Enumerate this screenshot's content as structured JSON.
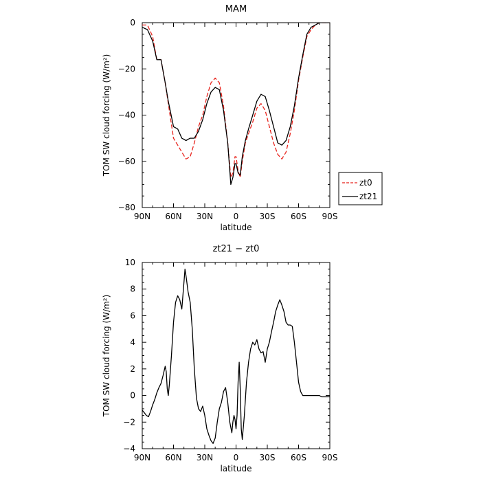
{
  "chart_data": [
    {
      "type": "line",
      "title": "MAM",
      "xlabel": "latitude",
      "ylabel": "TOM SW cloud forcing (W/m²)",
      "xlim": [
        -90,
        90
      ],
      "ylim": [
        -80,
        0
      ],
      "x_ticks": [
        -90,
        -60,
        -30,
        0,
        30,
        60,
        90
      ],
      "x_tick_labels": [
        "90N",
        "60N",
        "30N",
        "0",
        "30S",
        "60S",
        "90S"
      ],
      "y_ticks": [
        0,
        -20,
        -40,
        -60,
        -80
      ],
      "y_tick_labels": [
        "0",
        "−20",
        "−40",
        "−60",
        "−80"
      ],
      "legend": {
        "placement": "right",
        "entries": [
          "zt0",
          "zt21"
        ]
      },
      "series": [
        {
          "name": "zt0",
          "color": "#e8231c",
          "dash": "dashed",
          "x": [
            -90,
            -85,
            -80,
            -76,
            -72,
            -68,
            -65,
            -60,
            -56,
            -52,
            -48,
            -44,
            -40,
            -36,
            -32,
            -28,
            -24,
            -20,
            -16,
            -12,
            -8,
            -5,
            -3,
            -1,
            0,
            2,
            4,
            6,
            9,
            12,
            16,
            20,
            24,
            28,
            32,
            36,
            40,
            44,
            48,
            52,
            56,
            60,
            64,
            68,
            72,
            76,
            80,
            85,
            90
          ],
          "y": [
            -1,
            -1,
            -6,
            -16,
            -16,
            -26,
            -35,
            -50,
            -53,
            -56,
            -59,
            -58,
            -52,
            -45,
            -40,
            -32,
            -26,
            -24,
            -26,
            -36,
            -52,
            -67,
            -65,
            -58,
            -58,
            -64,
            -67,
            -60,
            -52,
            -48,
            -43,
            -37,
            -35,
            -38,
            -45,
            -52,
            -57,
            -59,
            -56,
            -48,
            -38,
            -25,
            -15,
            -6,
            -3,
            -1,
            0,
            0,
            0
          ]
        },
        {
          "name": "zt21",
          "color": "#000000",
          "dash": "solid",
          "x": [
            -90,
            -85,
            -80,
            -76,
            -72,
            -68,
            -65,
            -60,
            -56,
            -52,
            -48,
            -44,
            -40,
            -36,
            -32,
            -28,
            -24,
            -20,
            -16,
            -12,
            -8,
            -5,
            -3,
            -1,
            0,
            2,
            4,
            6,
            9,
            12,
            16,
            20,
            24,
            28,
            32,
            36,
            40,
            44,
            48,
            52,
            56,
            60,
            64,
            68,
            72,
            76,
            80,
            85,
            90
          ],
          "y": [
            -2,
            -3,
            -8,
            -16,
            -16,
            -26,
            -34,
            -45,
            -46,
            -50,
            -51,
            -50,
            -50,
            -47,
            -42,
            -35,
            -30,
            -28,
            -29,
            -38,
            -52,
            -70,
            -67,
            -61,
            -61,
            -65,
            -66,
            -58,
            -51,
            -46,
            -40,
            -34,
            -31,
            -32,
            -38,
            -45,
            -52,
            -53,
            -51,
            -45,
            -36,
            -24,
            -14,
            -5,
            -2,
            -1,
            0,
            0,
            0
          ]
        }
      ]
    },
    {
      "type": "line",
      "title": "zt21 − zt0",
      "xlabel": "latitude",
      "ylabel": "TOM SW cloud forcing (W/m²)",
      "xlim": [
        -90,
        90
      ],
      "ylim": [
        -4,
        10
      ],
      "x_ticks": [
        -90,
        -60,
        -30,
        0,
        30,
        60,
        90
      ],
      "x_tick_labels": [
        "90N",
        "60N",
        "30N",
        "0",
        "30S",
        "60S",
        "90S"
      ],
      "y_ticks": [
        10,
        8,
        6,
        4,
        2,
        0,
        -2,
        -4
      ],
      "y_tick_labels": [
        "10",
        "8",
        "6",
        "4",
        "2",
        "0",
        "−2",
        "−4"
      ],
      "series": [
        {
          "color": "#000000",
          "dash": "solid",
          "x": [
            -90,
            -88,
            -86,
            -84,
            -82,
            -80,
            -78,
            -76,
            -74,
            -72,
            -70,
            -68,
            -67,
            -66,
            -65,
            -64,
            -62,
            -60,
            -58,
            -56,
            -54,
            -52,
            -50,
            -49,
            -48,
            -46,
            -44,
            -42,
            -40,
            -38,
            -36,
            -34,
            -32,
            -30,
            -28,
            -26,
            -24,
            -22,
            -20,
            -18,
            -16,
            -14,
            -12,
            -10,
            -8,
            -6,
            -4,
            -3,
            -2,
            -1,
            0,
            1,
            2,
            3,
            4,
            5,
            6,
            8,
            10,
            12,
            14,
            16,
            18,
            20,
            22,
            24,
            26,
            28,
            30,
            32,
            34,
            36,
            38,
            40,
            42,
            44,
            46,
            48,
            50,
            52,
            54,
            56,
            58,
            60,
            62,
            64,
            66,
            68,
            70,
            72,
            74,
            76,
            78,
            80,
            82,
            84,
            86,
            88,
            90
          ],
          "y": [
            -1.1,
            -1.3,
            -1.5,
            -1.6,
            -1.2,
            -0.7,
            -0.3,
            0.2,
            0.6,
            0.9,
            1.5,
            2.2,
            1.8,
            0.5,
            0.0,
            0.8,
            3.0,
            5.5,
            7.0,
            7.5,
            7.2,
            6.5,
            8.5,
            9.5,
            9.0,
            7.8,
            7.0,
            5.0,
            2.0,
            -0.2,
            -1.0,
            -1.2,
            -0.8,
            -1.5,
            -2.5,
            -3.0,
            -3.4,
            -3.6,
            -3.2,
            -2.0,
            -1.0,
            -0.5,
            0.3,
            0.6,
            -0.5,
            -2.0,
            -2.8,
            -2.0,
            -1.5,
            -1.8,
            -2.5,
            -1.5,
            1.0,
            2.5,
            0.5,
            -2.5,
            -3.3,
            -1.5,
            1.0,
            2.5,
            3.5,
            4.0,
            3.8,
            4.2,
            3.5,
            3.2,
            3.3,
            2.5,
            3.5,
            4.0,
            4.8,
            5.5,
            6.3,
            6.8,
            7.2,
            6.8,
            6.3,
            5.5,
            5.3,
            5.3,
            5.2,
            4.0,
            2.5,
            1.0,
            0.3,
            0.0,
            0.0,
            0.0,
            0.0,
            0.0,
            0.0,
            0.0,
            0.0,
            0.0,
            -0.1,
            -0.1,
            -0.1,
            -0.1,
            -0.1
          ]
        }
      ]
    }
  ]
}
